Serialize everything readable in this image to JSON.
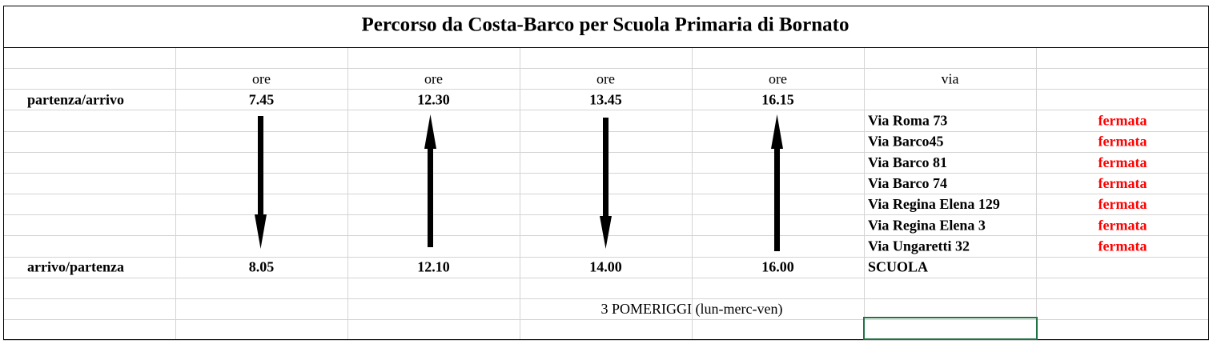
{
  "title": "Percorso da Costa-Barco per Scuola Primaria di Bornato",
  "header": {
    "times": [
      "ore",
      "ore",
      "ore",
      "ore"
    ],
    "via": "via"
  },
  "departure": {
    "label": "partenza/arrivo",
    "times": [
      "7.45",
      "12.30",
      "13.45",
      "16.15"
    ]
  },
  "stops": [
    {
      "via": "Via Roma 73",
      "status": "fermata"
    },
    {
      "via": "Via Barco45",
      "status": "fermata"
    },
    {
      "via": "Via Barco 81",
      "status": "fermata"
    },
    {
      "via": "Via Barco 74",
      "status": "fermata"
    },
    {
      "via": "Via Regina Elena 129",
      "status": "fermata"
    },
    {
      "via": "Via Regina Elena 3",
      "status": "fermata"
    },
    {
      "via": "Via Ungaretti 32",
      "status": "fermata"
    }
  ],
  "arrival": {
    "label": "arrivo/partenza",
    "times": [
      "8.05",
      "12.10",
      "14.00",
      "16.00"
    ],
    "via": "SCUOLA"
  },
  "note": "3 POMERIGGI (lun-merc-ven)"
}
